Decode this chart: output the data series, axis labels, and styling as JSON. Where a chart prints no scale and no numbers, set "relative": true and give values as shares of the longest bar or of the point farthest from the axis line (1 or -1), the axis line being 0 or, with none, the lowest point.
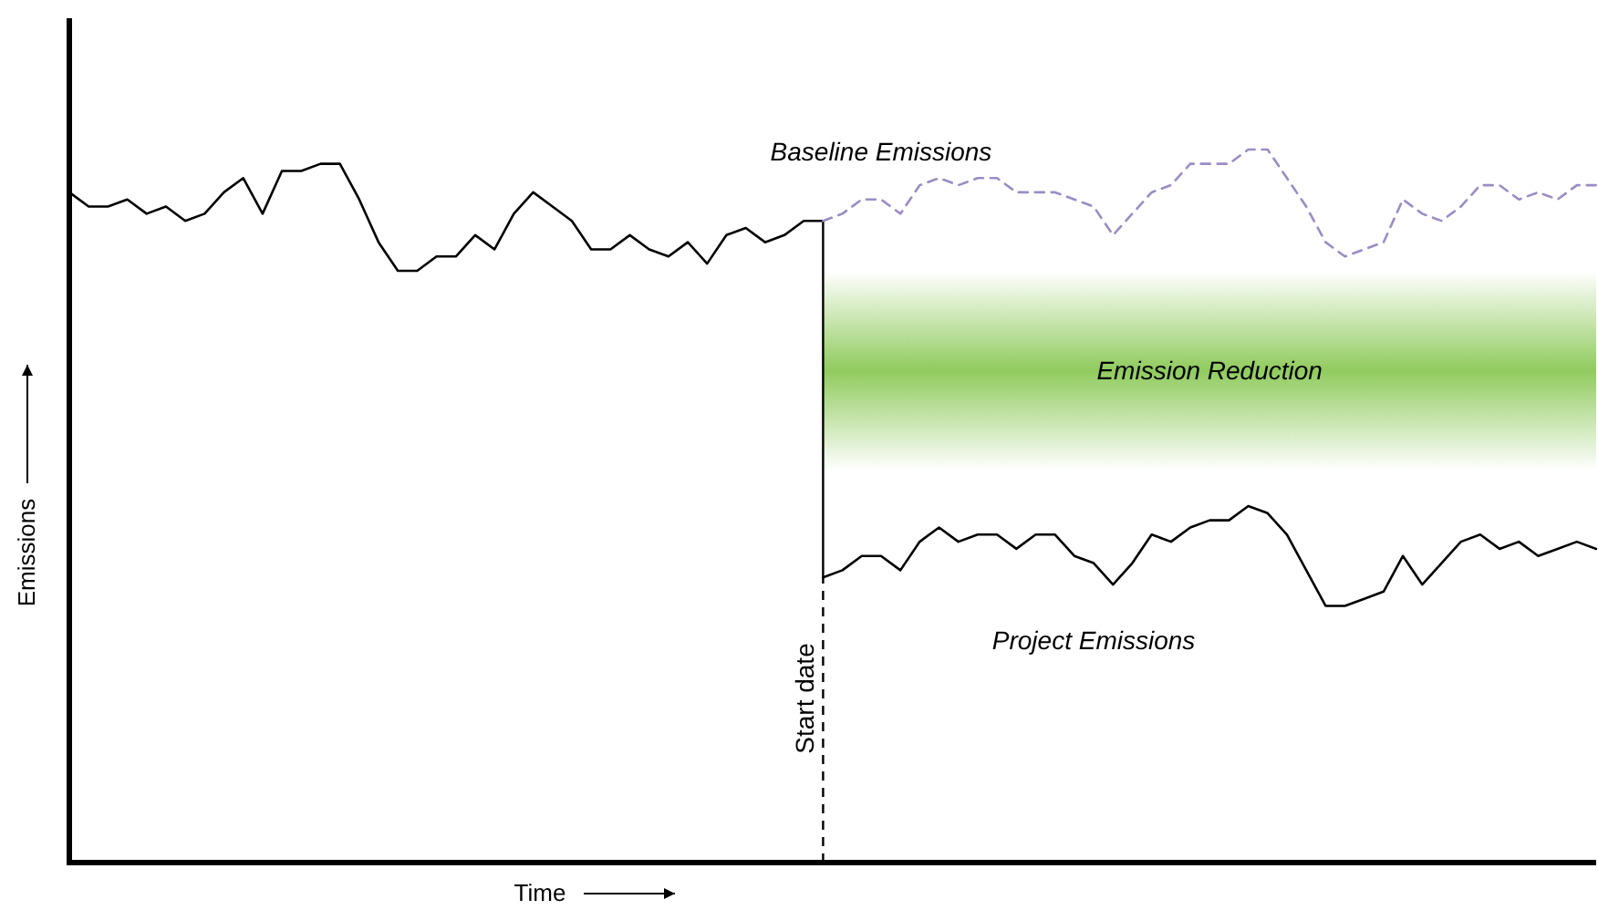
{
  "chart_data": {
    "type": "line",
    "relative": true,
    "xlabel": "Time",
    "ylabel": "Emissions",
    "annotations": [
      "Start date"
    ],
    "categories": [
      null,
      null,
      null,
      null,
      null,
      null,
      null,
      null,
      null,
      null,
      null,
      null,
      null,
      null,
      null,
      null,
      null,
      null,
      null,
      null,
      null,
      null,
      null,
      null,
      null,
      null,
      null,
      null,
      null,
      null,
      null,
      null,
      null,
      null,
      null,
      null,
      null,
      null,
      null,
      null,
      null,
      null,
      null,
      null,
      null,
      null,
      null,
      null,
      null,
      null,
      null,
      null,
      null,
      null,
      null,
      null,
      null,
      null,
      null,
      null,
      null,
      null,
      null,
      null,
      null,
      null,
      null,
      null,
      null,
      null,
      null,
      null,
      null,
      null,
      null,
      null,
      null,
      null,
      null,
      null
    ],
    "series": [
      {
        "color": "#000000",
        "line_style": "solid",
        "values": [
          0.94,
          0.92,
          0.92,
          0.93,
          0.91,
          0.92,
          0.9,
          0.91,
          0.94,
          0.96,
          0.91,
          0.97,
          0.97,
          0.98,
          0.98,
          0.93,
          0.87,
          0.83,
          0.83,
          0.85,
          0.85,
          0.88,
          0.86,
          0.91,
          0.94,
          0.92,
          0.9,
          0.86,
          0.86,
          0.88,
          0.86,
          0.85,
          0.87,
          0.84,
          0.88,
          0.89,
          0.87,
          0.88,
          0.9,
          0.9,
          null,
          null,
          null,
          null,
          null,
          null,
          null,
          null,
          null,
          null,
          null,
          null,
          null,
          null,
          null,
          null,
          null,
          null,
          null,
          null,
          null,
          null,
          null,
          null,
          null,
          null,
          null,
          null,
          null,
          null,
          null,
          null,
          null,
          null,
          null,
          null,
          null,
          null,
          null,
          null
        ]
      },
      {
        "name": "Baseline Emissions",
        "color": "#9b8cc4",
        "line_style": "dashed",
        "values": [
          null,
          null,
          null,
          null,
          null,
          null,
          null,
          null,
          null,
          null,
          null,
          null,
          null,
          null,
          null,
          null,
          null,
          null,
          null,
          null,
          null,
          null,
          null,
          null,
          null,
          null,
          null,
          null,
          null,
          null,
          null,
          null,
          null,
          null,
          null,
          null,
          null,
          null,
          null,
          0.9,
          0.91,
          0.93,
          0.93,
          0.91,
          0.95,
          0.96,
          0.95,
          0.96,
          0.96,
          0.94,
          0.94,
          0.94,
          0.93,
          0.92,
          0.88,
          0.91,
          0.94,
          0.95,
          0.98,
          0.98,
          0.98,
          1,
          1,
          0.96,
          0.92,
          0.87,
          0.85,
          0.86,
          0.87,
          0.93,
          0.91,
          0.9,
          0.92,
          0.95,
          0.95,
          0.93,
          0.94,
          0.93,
          0.95,
          0.95
        ]
      },
      {
        "name": "Project Emissions",
        "color": "#000000",
        "line_style": "solid",
        "values": [
          null,
          null,
          null,
          null,
          null,
          null,
          null,
          null,
          null,
          null,
          null,
          null,
          null,
          null,
          null,
          null,
          null,
          null,
          null,
          null,
          null,
          null,
          null,
          null,
          null,
          null,
          null,
          null,
          null,
          null,
          null,
          null,
          null,
          null,
          null,
          null,
          null,
          null,
          null,
          0.4,
          0.41,
          0.43,
          0.43,
          0.41,
          0.45,
          0.47,
          0.45,
          0.46,
          0.46,
          0.44,
          0.46,
          0.46,
          0.43,
          0.42,
          0.39,
          0.42,
          0.46,
          0.45,
          0.47,
          0.48,
          0.48,
          0.5,
          0.49,
          0.46,
          0.41,
          0.36,
          0.36,
          0.37,
          0.38,
          0.43,
          0.39,
          0.42,
          0.45,
          0.46,
          0.44,
          0.45,
          0.43,
          0.44,
          0.45,
          0.44
        ]
      }
    ],
    "bands": [
      {
        "axis": "y",
        "from": 0.55,
        "to": 0.83,
        "label": "Emission Reduction",
        "color": "#7dc242"
      }
    ]
  }
}
